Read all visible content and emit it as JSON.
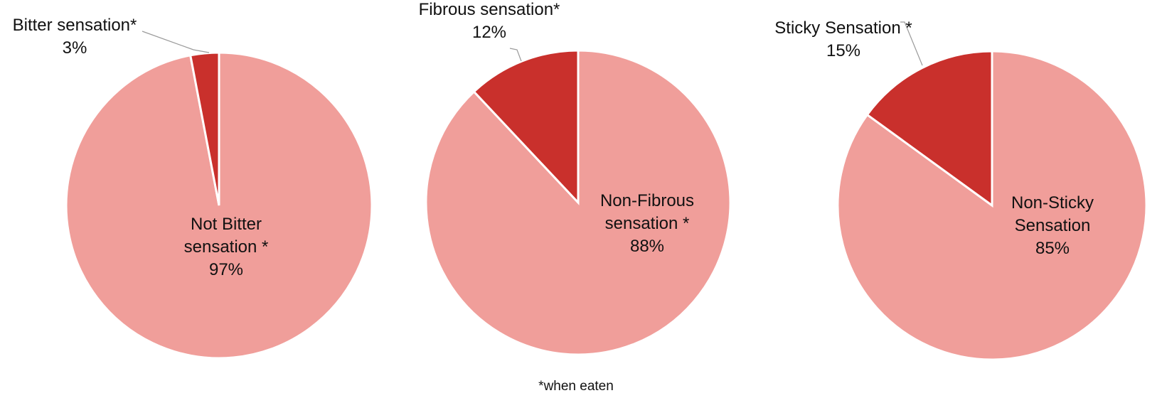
{
  "chart_data": [
    {
      "type": "pie",
      "slices": [
        {
          "label_lines": [
            "Bitter sensation*",
            "3%"
          ],
          "value": 3,
          "color": "#c9302c"
        },
        {
          "label_lines": [
            "Not Bitter",
            "sensation *",
            "97%"
          ],
          "value": 97,
          "color": "#f09e9a"
        }
      ]
    },
    {
      "type": "pie",
      "slices": [
        {
          "label_lines": [
            "Fibrous sensation*",
            "12%"
          ],
          "value": 12,
          "color": "#c9302c"
        },
        {
          "label_lines": [
            "Non-Fibrous",
            "sensation *",
            "88%"
          ],
          "value": 88,
          "color": "#f09e9a"
        }
      ]
    },
    {
      "type": "pie",
      "slices": [
        {
          "label_lines": [
            "Sticky Sensation  *",
            "15%"
          ],
          "value": 15,
          "color": "#c9302c"
        },
        {
          "label_lines": [
            "Non-Sticky",
            "Sensation",
            "85%"
          ],
          "value": 85,
          "color": "#f09e9a"
        }
      ]
    }
  ],
  "footnote": "*when eaten"
}
